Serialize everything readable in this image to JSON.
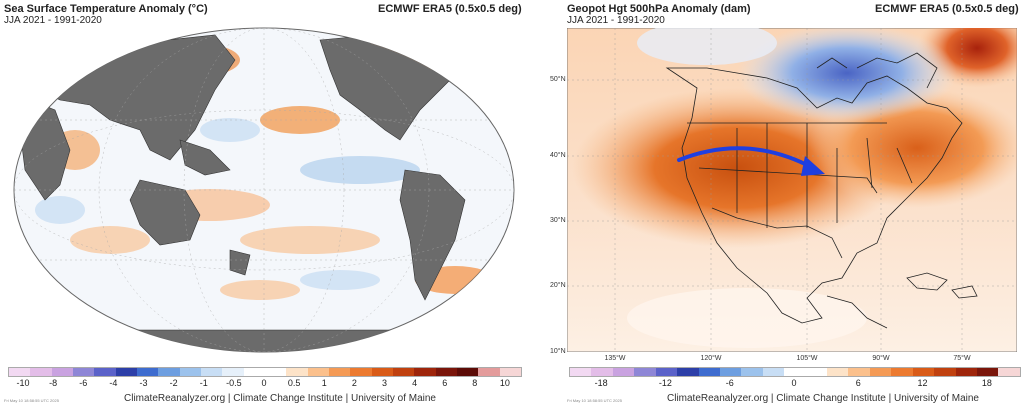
{
  "left_map": {
    "title": "Sea Surface Temperature Anomaly (°C)",
    "subtitle": "JJA 2021 - 1991-2020",
    "source": "ECMWF ERA5 (0.5x0.5 deg)",
    "colorbar_ticks": [
      "-10",
      "-8",
      "-6",
      "-4",
      "-3",
      "-2",
      "-1",
      "-0.5",
      "0",
      "0.5",
      "1",
      "2",
      "3",
      "4",
      "6",
      "8",
      "10"
    ],
    "colorbar_colors": [
      "#f2d9f2",
      "#e3bde8",
      "#c9a2e0",
      "#8e86d6",
      "#5b62c9",
      "#2d3fa8",
      "#3e6ccf",
      "#6d9ee0",
      "#9cc2ec",
      "#c8def5",
      "#e6f0fa",
      "#ffffff",
      "#ffffff",
      "#fde3c8",
      "#fbc08c",
      "#f49a55",
      "#ec7a30",
      "#d95b18",
      "#c0410f",
      "#9e250b",
      "#7a150a",
      "#5c0b06",
      "#e39b9b",
      "#f6d6d6"
    ],
    "credit": "ClimateReanalyzer.org | Climate Change Institute | University of Maine",
    "stamp": "Fri May 10 18:58:55 UTC 2025"
  },
  "right_map": {
    "title": "Geopot Hgt 500hPa Anomaly (dam)",
    "subtitle": "JJA 2021 - 1991-2020",
    "source": "ECMWF ERA5 (0.5x0.5 deg)",
    "lat_labels": [
      "50°N",
      "40°N",
      "30°N",
      "20°N",
      "10°N"
    ],
    "lon_labels": [
      "135°W",
      "120°W",
      "105°W",
      "90°W",
      "75°W"
    ],
    "colorbar_ticks": [
      "-18",
      "-12",
      "-6",
      "0",
      "6",
      "12",
      "18"
    ],
    "colorbar_colors": [
      "#f2d9f2",
      "#e3bde8",
      "#c9a2e0",
      "#8e86d6",
      "#5b62c9",
      "#2d3fa8",
      "#3e6ccf",
      "#6d9ee0",
      "#9cc2ec",
      "#c8def5",
      "#ffffff",
      "#ffffff",
      "#fde3c8",
      "#fbc08c",
      "#f49a55",
      "#ec7a30",
      "#d95b18",
      "#c0410f",
      "#9e250b",
      "#7a150a",
      "#f6d6d6"
    ],
    "credit": "ClimateReanalyzer.org | Climate Change Institute | University of Maine",
    "stamp": "Fri May 10 18:58:55 UTC 2025",
    "annotation": "jet-stream arrow"
  }
}
